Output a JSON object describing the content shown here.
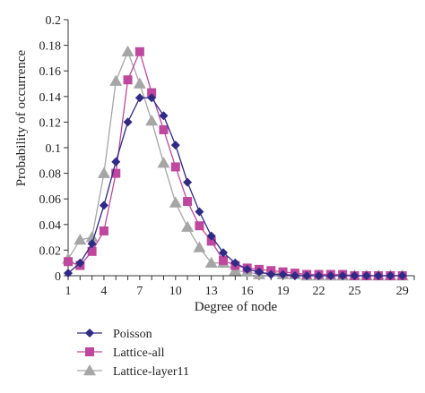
{
  "chart_data": {
    "type": "line",
    "xlabel": "Degree of node",
    "ylabel": "Probability of occurrence",
    "xlim": [
      1,
      30
    ],
    "ylim": [
      0,
      0.2
    ],
    "xticks": [
      1,
      4,
      7,
      10,
      13,
      16,
      19,
      22,
      25,
      29
    ],
    "yticks": [
      0,
      0.02,
      0.04,
      0.06,
      0.08,
      0.1,
      0.12,
      0.14,
      0.16,
      0.18,
      0.2
    ],
    "ytick_labels": [
      "0",
      "0.02",
      "0.04",
      "0.06",
      "0.08",
      "0.1",
      "0.12",
      "0.14",
      "0.16",
      "0.18",
      "0.2"
    ],
    "grid": false,
    "legend_position": "bottom",
    "series": [
      {
        "name": "Poisson",
        "marker": "diamond",
        "color": "#2e2a86",
        "x": [
          1,
          2,
          3,
          4,
          5,
          6,
          7,
          8,
          9,
          10,
          11,
          12,
          13,
          14,
          15,
          16,
          17,
          18,
          19,
          20,
          21,
          22,
          23,
          24,
          25,
          26,
          27,
          28,
          29
        ],
        "y": [
          0.002,
          0.01,
          0.025,
          0.055,
          0.089,
          0.12,
          0.139,
          0.139,
          0.125,
          0.102,
          0.073,
          0.05,
          0.031,
          0.018,
          0.01,
          0.005,
          0.003,
          0.001,
          0.001,
          0,
          0,
          0,
          0,
          0,
          0,
          0,
          0,
          0,
          0
        ]
      },
      {
        "name": "Lattice-all",
        "marker": "square",
        "color": "#c0479e",
        "x": [
          1,
          2,
          3,
          4,
          5,
          6,
          7,
          8,
          9,
          10,
          11,
          12,
          13,
          14,
          15,
          16,
          17,
          18,
          19,
          20,
          21,
          22,
          23,
          24,
          25,
          26,
          27,
          28,
          29
        ],
        "y": [
          0.011,
          0.008,
          0.019,
          0.035,
          0.08,
          0.153,
          0.175,
          0.143,
          0.114,
          0.085,
          0.058,
          0.039,
          0.027,
          0.012,
          0.008,
          0.006,
          0.005,
          0.004,
          0.003,
          0.002,
          0.001,
          0.001,
          0.001,
          0.001,
          0,
          0,
          0,
          0,
          0
        ]
      },
      {
        "name": "Lattice-layer11",
        "marker": "triangle",
        "color": "#a6a6a6",
        "x": [
          1,
          2,
          3,
          4,
          5,
          6,
          7,
          8,
          9,
          10,
          11,
          12,
          13,
          14,
          15,
          16,
          17,
          18,
          19,
          20,
          21,
          22,
          23,
          24,
          25,
          26,
          27,
          28,
          29
        ],
        "y": [
          0.013,
          0.028,
          0.03,
          0.08,
          0.152,
          0.175,
          0.15,
          0.121,
          0.088,
          0.057,
          0.038,
          0.022,
          0.01,
          0.01,
          0.004,
          0.003,
          0.001,
          0.003,
          0.001,
          0.001,
          0,
          0,
          0,
          0,
          0,
          0,
          0,
          0,
          0
        ]
      }
    ]
  }
}
